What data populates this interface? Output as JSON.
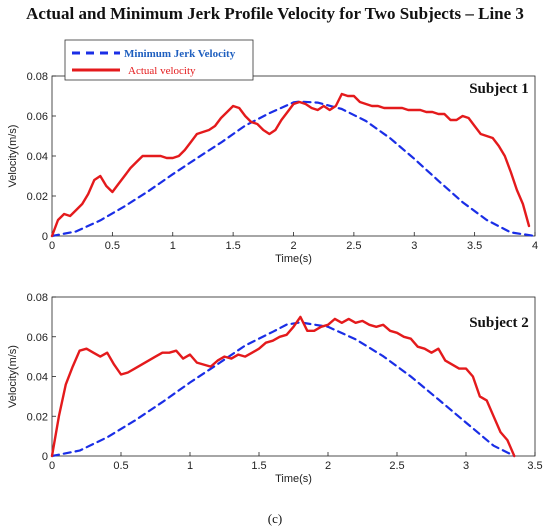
{
  "figure": {
    "title": "Actual and Minimum Jerk Profile Velocity for Two Subjects – Line 3",
    "caption": "(c)"
  },
  "colors": {
    "min_jerk": "#1a2ee6",
    "actual": "#e41a1c",
    "legend_min_text": "#1f5fbf"
  },
  "chart_data": [
    {
      "type": "line",
      "annotation": "Subject 1",
      "xlabel": "Time(s)",
      "ylabel": "Velocity(m/s)",
      "xlim": [
        0,
        4
      ],
      "ylim": [
        0,
        0.08
      ],
      "xticks": [
        "0",
        "0.5",
        "1",
        "1.5",
        "2",
        "2.5",
        "3",
        "3.5",
        "4"
      ],
      "yticks": [
        "0",
        "0.02",
        "0.04",
        "0.06",
        "0.08"
      ],
      "legend": {
        "placement": "top-left",
        "entries": [
          "Minimum Jerk Velocity",
          "Actual velocity"
        ]
      },
      "series": [
        {
          "name": "Minimum Jerk Velocity",
          "style": "dashed",
          "x": [
            0,
            0.2,
            0.4,
            0.6,
            0.8,
            1.0,
            1.2,
            1.4,
            1.6,
            1.8,
            2.0,
            2.05,
            2.2,
            2.4,
            2.6,
            2.8,
            3.0,
            3.2,
            3.4,
            3.6,
            3.8,
            4.0
          ],
          "y": [
            0,
            0.0023,
            0.0078,
            0.0148,
            0.0225,
            0.0309,
            0.0389,
            0.0467,
            0.0552,
            0.0614,
            0.0668,
            0.0672,
            0.0667,
            0.0635,
            0.0575,
            0.0489,
            0.0386,
            0.0276,
            0.0169,
            0.008,
            0.0018,
            0
          ]
        },
        {
          "name": "Actual velocity",
          "style": "solid",
          "x": [
            0,
            0.05,
            0.1,
            0.15,
            0.2,
            0.25,
            0.3,
            0.35,
            0.4,
            0.45,
            0.5,
            0.55,
            0.6,
            0.65,
            0.7,
            0.75,
            0.8,
            0.85,
            0.9,
            0.95,
            1.0,
            1.05,
            1.1,
            1.15,
            1.2,
            1.25,
            1.3,
            1.35,
            1.4,
            1.45,
            1.5,
            1.55,
            1.6,
            1.65,
            1.7,
            1.75,
            1.8,
            1.85,
            1.9,
            1.95,
            2.0,
            2.05,
            2.1,
            2.15,
            2.2,
            2.25,
            2.3,
            2.35,
            2.4,
            2.45,
            2.5,
            2.55,
            2.6,
            2.65,
            2.7,
            2.75,
            2.8,
            2.85,
            2.9,
            2.95,
            3.0,
            3.05,
            3.1,
            3.15,
            3.2,
            3.25,
            3.3,
            3.35,
            3.4,
            3.45,
            3.5,
            3.55,
            3.6,
            3.65,
            3.7,
            3.75,
            3.8,
            3.85,
            3.9,
            3.95
          ],
          "y": [
            0,
            0.008,
            0.011,
            0.01,
            0.013,
            0.016,
            0.021,
            0.028,
            0.03,
            0.025,
            0.022,
            0.026,
            0.03,
            0.034,
            0.037,
            0.04,
            0.04,
            0.04,
            0.04,
            0.039,
            0.039,
            0.04,
            0.043,
            0.047,
            0.051,
            0.052,
            0.053,
            0.055,
            0.059,
            0.062,
            0.065,
            0.064,
            0.06,
            0.057,
            0.056,
            0.053,
            0.051,
            0.053,
            0.058,
            0.062,
            0.066,
            0.067,
            0.066,
            0.064,
            0.063,
            0.065,
            0.063,
            0.065,
            0.071,
            0.07,
            0.07,
            0.067,
            0.066,
            0.065,
            0.065,
            0.064,
            0.064,
            0.064,
            0.064,
            0.063,
            0.063,
            0.063,
            0.062,
            0.062,
            0.061,
            0.061,
            0.058,
            0.058,
            0.06,
            0.059,
            0.055,
            0.051,
            0.05,
            0.049,
            0.045,
            0.04,
            0.032,
            0.023,
            0.016,
            0.005
          ]
        }
      ]
    },
    {
      "type": "line",
      "annotation": "Subject 2",
      "xlabel": "Time(s)",
      "ylabel": "Velocity(m/s)",
      "xlim": [
        0,
        3.5
      ],
      "ylim": [
        0,
        0.08
      ],
      "xticks": [
        "0",
        "0.5",
        "1",
        "1.5",
        "2",
        "2.5",
        "3",
        "3.5"
      ],
      "yticks": [
        "0",
        "0.02",
        "0.04",
        "0.06",
        "0.08"
      ],
      "series": [
        {
          "name": "Minimum Jerk Velocity",
          "style": "dashed",
          "x": [
            0,
            0.2,
            0.4,
            0.6,
            0.8,
            1.0,
            1.2,
            1.4,
            1.6,
            1.7,
            1.8,
            2.0,
            2.2,
            2.4,
            2.6,
            2.8,
            3.0,
            3.2,
            3.35
          ],
          "y": [
            0,
            0.0027,
            0.0094,
            0.0178,
            0.0271,
            0.037,
            0.0462,
            0.0556,
            0.0625,
            0.0661,
            0.0672,
            0.065,
            0.0587,
            0.0502,
            0.04,
            0.0285,
            0.0168,
            0.0052,
            0
          ]
        },
        {
          "name": "Actual velocity",
          "style": "solid",
          "x": [
            0,
            0.05,
            0.1,
            0.15,
            0.2,
            0.25,
            0.3,
            0.35,
            0.4,
            0.45,
            0.5,
            0.55,
            0.6,
            0.65,
            0.7,
            0.75,
            0.8,
            0.85,
            0.9,
            0.95,
            1.0,
            1.05,
            1.1,
            1.15,
            1.2,
            1.25,
            1.3,
            1.35,
            1.4,
            1.45,
            1.5,
            1.55,
            1.6,
            1.65,
            1.7,
            1.75,
            1.8,
            1.85,
            1.9,
            1.95,
            2.0,
            2.05,
            2.1,
            2.15,
            2.2,
            2.25,
            2.3,
            2.35,
            2.4,
            2.45,
            2.5,
            2.55,
            2.6,
            2.65,
            2.7,
            2.75,
            2.8,
            2.85,
            2.9,
            2.95,
            3.0,
            3.05,
            3.1,
            3.15,
            3.2,
            3.25,
            3.3,
            3.35
          ],
          "y": [
            0,
            0.02,
            0.036,
            0.045,
            0.053,
            0.054,
            0.052,
            0.05,
            0.052,
            0.046,
            0.041,
            0.042,
            0.044,
            0.046,
            0.048,
            0.05,
            0.052,
            0.052,
            0.053,
            0.049,
            0.051,
            0.047,
            0.046,
            0.045,
            0.048,
            0.05,
            0.049,
            0.051,
            0.05,
            0.052,
            0.054,
            0.057,
            0.058,
            0.06,
            0.061,
            0.065,
            0.07,
            0.063,
            0.063,
            0.065,
            0.066,
            0.069,
            0.067,
            0.069,
            0.067,
            0.068,
            0.066,
            0.065,
            0.066,
            0.063,
            0.062,
            0.06,
            0.059,
            0.055,
            0.054,
            0.052,
            0.054,
            0.048,
            0.046,
            0.044,
            0.044,
            0.04,
            0.03,
            0.028,
            0.02,
            0.012,
            0.008,
            0.0
          ]
        }
      ]
    }
  ]
}
